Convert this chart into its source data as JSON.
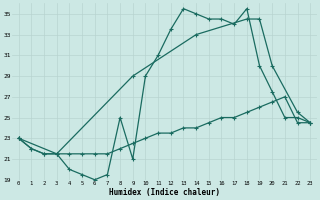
{
  "title": "",
  "xlabel": "Humidex (Indice chaleur)",
  "background_color": "#cce8e4",
  "grid_color": "#b8d4d0",
  "line_color": "#1a6b60",
  "xlim": [
    -0.5,
    23.5
  ],
  "ylim": [
    19,
    36
  ],
  "yticks": [
    19,
    21,
    23,
    25,
    27,
    29,
    31,
    33,
    35
  ],
  "xticks": [
    0,
    1,
    2,
    3,
    4,
    5,
    6,
    7,
    8,
    9,
    10,
    11,
    12,
    13,
    14,
    15,
    16,
    17,
    18,
    19,
    20,
    21,
    22,
    23
  ],
  "line1_x": [
    0,
    1,
    2,
    3,
    4,
    5,
    6,
    7,
    8,
    9,
    10,
    11,
    12,
    13,
    14,
    15,
    16,
    17,
    18,
    19,
    20,
    21,
    22,
    23
  ],
  "line1_y": [
    23.0,
    22.0,
    21.5,
    21.5,
    20.0,
    19.5,
    19.0,
    19.5,
    25.0,
    21.0,
    29.0,
    31.0,
    33.5,
    35.5,
    35.0,
    34.5,
    34.5,
    34.0,
    35.5,
    30.0,
    27.5,
    25.0,
    25.0,
    24.5
  ],
  "line2_x": [
    0,
    1,
    2,
    3,
    4,
    5,
    6,
    7,
    8,
    9,
    10,
    11,
    12,
    13,
    14,
    15,
    16,
    17,
    18,
    19,
    20,
    21,
    22,
    23
  ],
  "line2_y": [
    23.0,
    22.0,
    21.5,
    21.5,
    21.5,
    21.5,
    21.5,
    21.5,
    22.0,
    22.5,
    23.0,
    23.5,
    23.5,
    24.0,
    24.0,
    24.5,
    25.0,
    25.0,
    25.5,
    26.0,
    26.5,
    27.0,
    24.5,
    24.5
  ],
  "line3_x": [
    0,
    3,
    9,
    14,
    18,
    19,
    20,
    22,
    23
  ],
  "line3_y": [
    23.0,
    21.5,
    29.0,
    33.0,
    34.5,
    34.5,
    30.0,
    25.5,
    24.5
  ]
}
